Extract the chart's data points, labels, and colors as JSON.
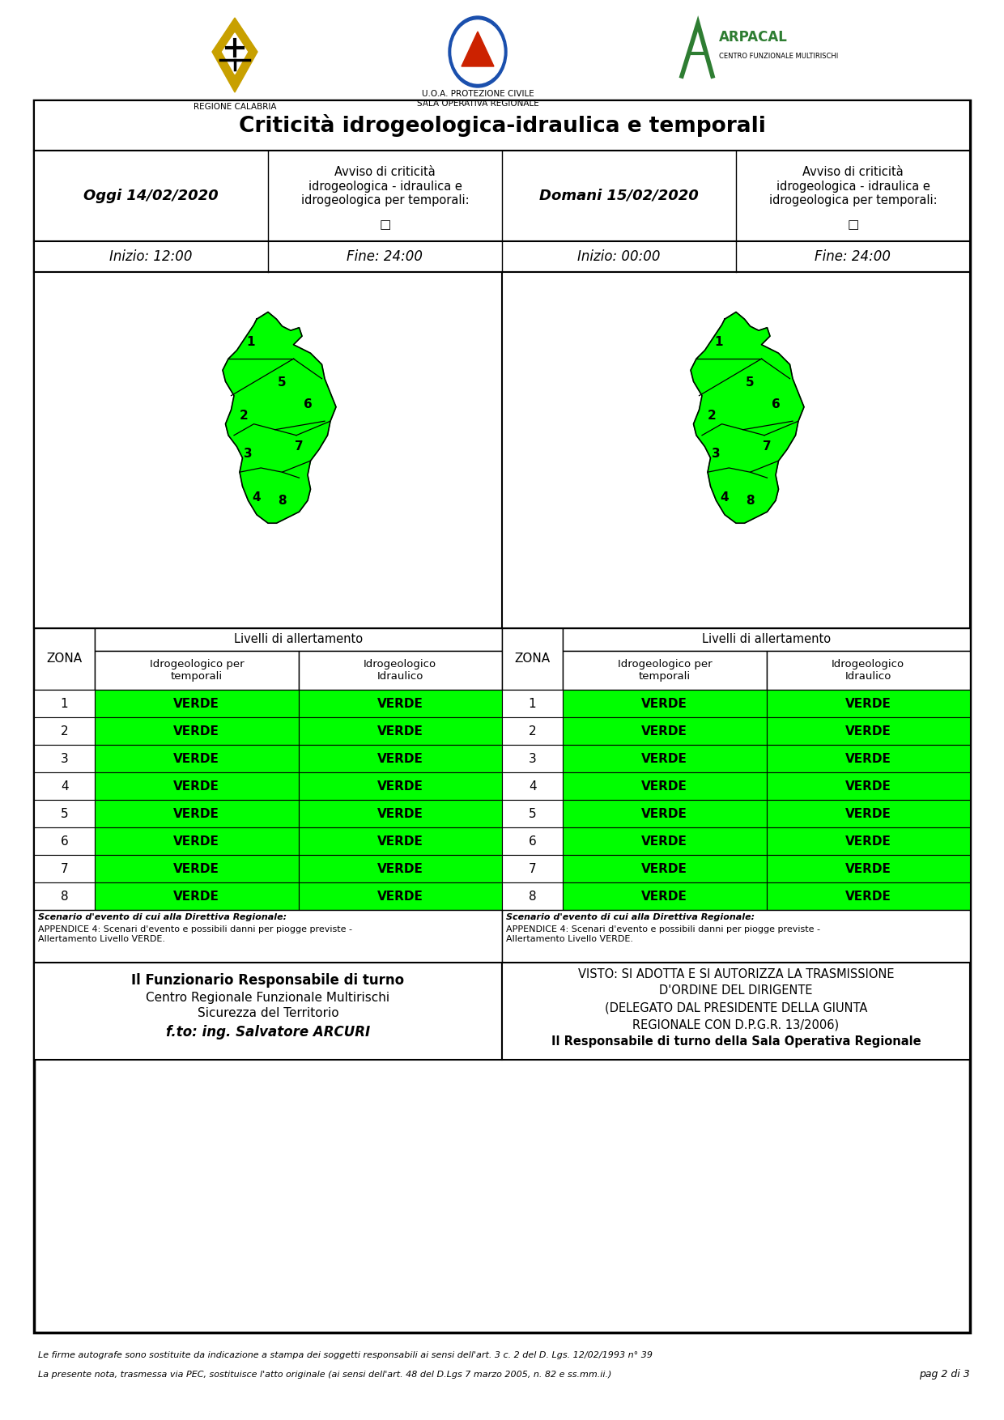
{
  "title": "Criticità idrogeologica-idraulica e temporali",
  "page_bg": "#ffffff",
  "today_date": "Oggi 14/02/2020",
  "tomorrow_date": "Domani 15/02/2020",
  "avviso_text": "Avviso di criticità\nidrogeologica - idraulica e\nidrogeologica per temporali:",
  "today_inizio": "Inizio: 12:00",
  "today_fine": "Fine: 24:00",
  "tomorrow_inizio": "Inizio: 00:00",
  "tomorrow_fine": "Fine: 24:00",
  "livelli_title": "Livelli di allertamento",
  "zona_label": "ZONA",
  "col1_label": "Idrogeologico per\ntemporali",
  "col2_label": "Idrogeologico\nIdraulico",
  "zones": [
    1,
    2,
    3,
    4,
    5,
    6,
    7,
    8
  ],
  "verde_color": "#00ff00",
  "verde_text": "VERDE",
  "scenario_bold": "Scenario d'evento di cui alla Direttiva Regionale:",
  "scenario_normal": "APPENDICE 4: Scenari d'evento e possibili danni per piogge previste -\nAllertamento Livello VERDE.",
  "footer_left_title": "Il Funzionario Responsabile di turno",
  "footer_left_line2": "Centro Regionale Funzionale Multirischi",
  "footer_left_line3": "Sicurezza del Territorio",
  "footer_left_line4": "f.to: ing. Salvatore ARCURI",
  "footer_right_line1": "VISTO: SI ADOTTA E SI AUTORIZZA LA TRASMISSIONE",
  "footer_right_line2": "D'ORDINE DEL DIRIGENTE",
  "footer_right_line3": "(DELEGATO DAL PRESIDENTE DELLA GIUNTA",
  "footer_right_line4": "REGIONALE CON D.P.G.R. 13/2006)",
  "footer_right_line5": "Il Responsabile di turno della Sala Operativa Regionale",
  "footnote1": "Le firme autografe sono sostituite da indicazione a stampa dei soggetti responsabili ai sensi dell'art. 3 c. 2 del D. Lgs. 12/02/1993 n° 39",
  "footnote2": "La presente nota, trasmessa via PEC, sostituisce l'atto originale (ai sensi dell'art. 48 del D.Lgs 7 marzo 2005, n. 82 e ss.mm.ii.)",
  "page_number": "pag 2 di 3",
  "regione_label": "REGIONE CALABRIA",
  "protezione_label": "U.O.A. PROTEZIONE CIVILE\nSALA OPERATIVA REGIONALE",
  "arpacal_label": "ARPACAL",
  "arpacal_sub": "CENTRO FUNZIONALE MULTIRISCHI"
}
